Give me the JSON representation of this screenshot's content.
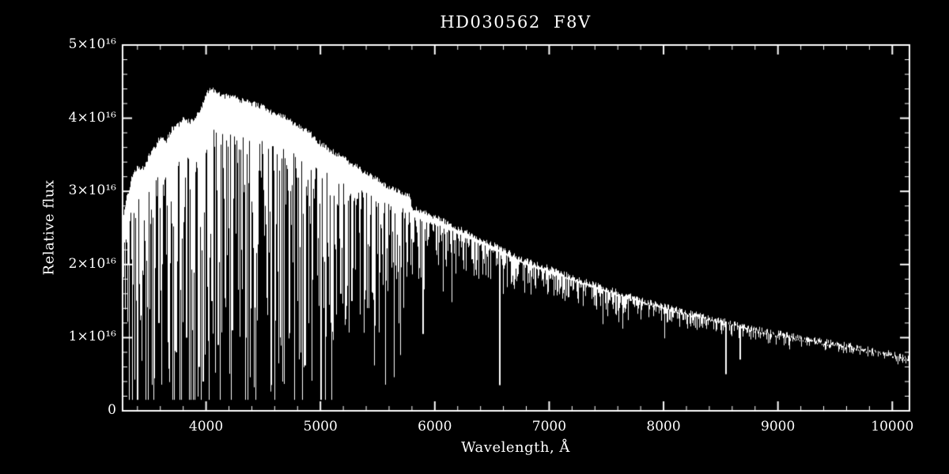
{
  "figure": {
    "background": "#000000",
    "foreground": "#ffffff",
    "title": "HD030562  F8V",
    "x_axis_label": "Wavelength, Å",
    "y_axis_label": "Relative flux"
  },
  "chart_data": {
    "type": "line",
    "title": "HD030562  F8V",
    "xlabel": "Wavelength, Å",
    "ylabel": "Relative flux",
    "xlim": [
      3270,
      10150
    ],
    "ylim": [
      0,
      5e+16
    ],
    "grid": false,
    "legend": false,
    "style": {
      "line_color": "#ffffff",
      "background": "#000000",
      "axis_color": "#ffffff"
    },
    "x_ticks": {
      "values": [
        4000,
        5000,
        6000,
        7000,
        8000,
        9000,
        10000
      ],
      "labels": [
        "4000",
        "5000",
        "6000",
        "7000",
        "8000",
        "9000",
        "10000"
      ],
      "minor_interval": 200
    },
    "y_ticks": {
      "values": [
        0,
        1e+16,
        2e+16,
        3e+16,
        4e+16,
        5e+16
      ],
      "labels": [
        "0",
        "1×10¹⁶",
        "2×10¹⁶",
        "3×10¹⁶",
        "4×10¹⁶",
        "5×10¹⁶"
      ],
      "minor_interval": 2000000000000000.0
    },
    "flux_unit": 1e+16,
    "continuum": {
      "wavelength": [
        3270,
        3300,
        3350,
        3400,
        3450,
        3500,
        3550,
        3600,
        3650,
        3700,
        3750,
        3800,
        3850,
        3900,
        3950,
        4000,
        4050,
        4100,
        4150,
        4200,
        4300,
        4400,
        4500,
        4600,
        4700,
        4800,
        4900,
        5000,
        5100,
        5200,
        5300,
        5400,
        5500,
        5600,
        5700,
        5770,
        5800,
        5900,
        6000,
        6100,
        6200,
        6300,
        6400,
        6500,
        6600,
        6700,
        6800,
        6900,
        7000,
        7200,
        7400,
        7600,
        7800,
        8000,
        8200,
        8400,
        8600,
        8800,
        9000,
        9200,
        9400,
        9600,
        9800,
        10000,
        10150
      ],
      "flux_1e16": [
        2.6,
        2.9,
        3.2,
        3.35,
        3.3,
        3.5,
        3.6,
        3.75,
        3.7,
        3.85,
        3.9,
        4.0,
        3.95,
        4.0,
        4.1,
        4.35,
        4.4,
        4.35,
        4.3,
        4.3,
        4.25,
        4.2,
        4.15,
        4.05,
        4.0,
        3.9,
        3.8,
        3.65,
        3.55,
        3.45,
        3.35,
        3.25,
        3.15,
        3.05,
        2.98,
        2.95,
        2.78,
        2.72,
        2.65,
        2.58,
        2.5,
        2.42,
        2.35,
        2.28,
        2.2,
        2.12,
        2.05,
        2.0,
        1.95,
        1.83,
        1.72,
        1.62,
        1.52,
        1.43,
        1.35,
        1.27,
        1.2,
        1.12,
        1.06,
        1.0,
        0.95,
        0.9,
        0.84,
        0.78,
        0.72
      ]
    },
    "absorption_depth_fraction": {
      "wavelength": [
        3270,
        3600,
        4000,
        4400,
        4800,
        5200,
        5600,
        5790,
        5810,
        6000,
        6400,
        7000,
        7600,
        8200,
        9000,
        10150
      ],
      "fraction": [
        0.55,
        0.52,
        0.5,
        0.46,
        0.42,
        0.36,
        0.3,
        0.26,
        0.18,
        0.13,
        0.11,
        0.1,
        0.09,
        0.08,
        0.07,
        0.06
      ]
    },
    "deep_lines": [
      [
        3581,
        1.2
      ],
      [
        3735,
        0.8
      ],
      [
        3820,
        1.0
      ],
      [
        3933,
        0.6
      ],
      [
        3968,
        0.4
      ],
      [
        4045,
        1.5
      ],
      [
        4101,
        0.9
      ],
      [
        4226,
        1.1
      ],
      [
        4340,
        1.0
      ],
      [
        4383,
        1.4
      ],
      [
        4861,
        0.62
      ],
      [
        5172,
        1.6
      ],
      [
        5270,
        1.5
      ],
      [
        5890,
        1.05
      ],
      [
        6563,
        0.35
      ],
      [
        8542,
        0.5
      ],
      [
        8662,
        0.7
      ]
    ]
  }
}
